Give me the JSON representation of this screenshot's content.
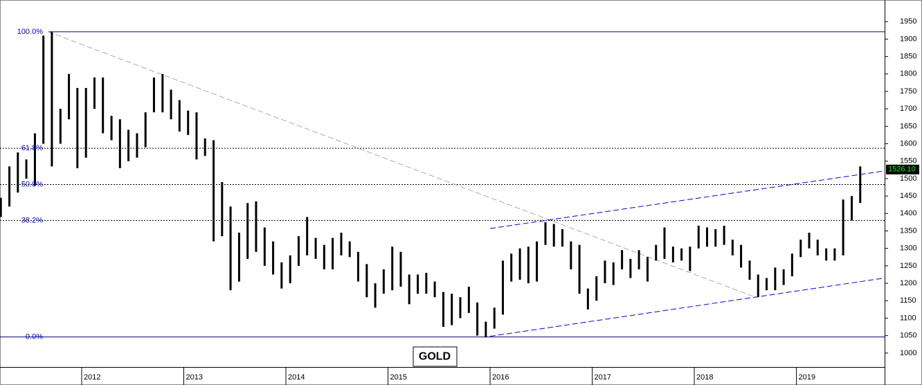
{
  "chart_data": {
    "type": "hilo",
    "title": "GOLD",
    "color": "#000000",
    "xlim": [
      2011.2,
      2019.864
    ],
    "xticks": [
      2012,
      2013,
      2014,
      2015,
      2016,
      2017,
      2018,
      2019
    ],
    "ylim": [
      960,
      2012
    ],
    "yticks": [
      1000,
      1050,
      1100,
      1150,
      1200,
      1250,
      1300,
      1350,
      1400,
      1450,
      1500,
      1550,
      1600,
      1650,
      1700,
      1750,
      1800,
      1850,
      1900,
      1950
    ],
    "x": [
      2011.208,
      2011.292,
      2011.375,
      2011.458,
      2011.542,
      2011.625,
      2011.708,
      2011.792,
      2011.875,
      2011.958,
      2012.042,
      2012.125,
      2012.208,
      2012.292,
      2012.375,
      2012.458,
      2012.542,
      2012.625,
      2012.708,
      2012.792,
      2012.875,
      2012.958,
      2013.042,
      2013.125,
      2013.208,
      2013.292,
      2013.375,
      2013.458,
      2013.542,
      2013.625,
      2013.708,
      2013.792,
      2013.875,
      2013.958,
      2014.042,
      2014.125,
      2014.208,
      2014.292,
      2014.375,
      2014.458,
      2014.542,
      2014.625,
      2014.708,
      2014.792,
      2014.875,
      2014.958,
      2015.042,
      2015.125,
      2015.208,
      2015.292,
      2015.375,
      2015.458,
      2015.542,
      2015.625,
      2015.708,
      2015.792,
      2015.875,
      2015.958,
      2016.042,
      2016.125,
      2016.208,
      2016.292,
      2016.375,
      2016.458,
      2016.542,
      2016.625,
      2016.708,
      2016.792,
      2016.875,
      2016.958,
      2017.042,
      2017.125,
      2017.208,
      2017.292,
      2017.375,
      2017.458,
      2017.542,
      2017.625,
      2017.708,
      2017.792,
      2017.875,
      2017.958,
      2018.042,
      2018.125,
      2018.208,
      2018.292,
      2018.375,
      2018.458,
      2018.542,
      2018.625,
      2018.708,
      2018.792,
      2018.875,
      2018.958,
      2019.042,
      2019.125,
      2019.208,
      2019.292,
      2019.375,
      2019.458,
      2019.542,
      2019.625
    ],
    "high": [
      1445,
      1535,
      1575,
      1555,
      1630,
      1910,
      1920,
      1700,
      1800,
      1760,
      1760,
      1790,
      1790,
      1680,
      1670,
      1640,
      1630,
      1690,
      1790,
      1800,
      1755,
      1725,
      1695,
      1690,
      1615,
      1610,
      1490,
      1420,
      1345,
      1430,
      1435,
      1360,
      1320,
      1260,
      1280,
      1335,
      1390,
      1330,
      1310,
      1330,
      1345,
      1320,
      1290,
      1255,
      1200,
      1240,
      1305,
      1290,
      1225,
      1225,
      1230,
      1205,
      1175,
      1170,
      1160,
      1190,
      1145,
      1090,
      1130,
      1265,
      1285,
      1300,
      1305,
      1320,
      1375,
      1370,
      1355,
      1320,
      1310,
      1185,
      1220,
      1265,
      1260,
      1295,
      1270,
      1295,
      1275,
      1310,
      1360,
      1305,
      1300,
      1305,
      1365,
      1360,
      1355,
      1365,
      1325,
      1310,
      1265,
      1225,
      1215,
      1245,
      1240,
      1285,
      1325,
      1345,
      1325,
      1300,
      1300,
      1440,
      1450,
      1535
    ],
    "low": [
      1390,
      1420,
      1460,
      1500,
      1480,
      1600,
      1535,
      1600,
      1670,
      1530,
      1560,
      1700,
      1630,
      1610,
      1530,
      1550,
      1560,
      1590,
      1690,
      1690,
      1670,
      1635,
      1625,
      1555,
      1565,
      1320,
      1335,
      1180,
      1205,
      1270,
      1290,
      1250,
      1225,
      1185,
      1200,
      1250,
      1280,
      1270,
      1240,
      1240,
      1280,
      1275,
      1205,
      1160,
      1130,
      1170,
      1180,
      1190,
      1140,
      1170,
      1170,
      1160,
      1075,
      1080,
      1100,
      1115,
      1050,
      1045,
      1070,
      1110,
      1205,
      1210,
      1200,
      1205,
      1310,
      1305,
      1305,
      1240,
      1170,
      1125,
      1150,
      1200,
      1195,
      1240,
      1215,
      1240,
      1205,
      1265,
      1270,
      1260,
      1265,
      1235,
      1300,
      1305,
      1305,
      1310,
      1280,
      1245,
      1210,
      1160,
      1180,
      1180,
      1195,
      1220,
      1275,
      1300,
      1280,
      1265,
      1265,
      1280,
      1380,
      1430
    ],
    "fib_levels": [
      {
        "value": 1921,
        "label": "100.0%"
      },
      {
        "value": 1587,
        "label": "61.8%"
      },
      {
        "value": 1483,
        "label": "50.0%"
      },
      {
        "value": 1380,
        "label": "38.2%"
      },
      {
        "value": 1046,
        "label": "0.0%"
      }
    ],
    "trend_lines": [
      {
        "color": "#aaaaaa",
        "x": [
          2011.67,
          2018.6
        ],
        "y": [
          1921,
          1160
        ]
      },
      {
        "color": "#0000dd",
        "x": [
          2016.0,
          2019.864
        ],
        "y": [
          1357,
          1522
        ]
      },
      {
        "color": "#0000dd",
        "x": [
          2016.0,
          2019.864
        ],
        "y": [
          1048,
          1215
        ]
      }
    ],
    "last_price": {
      "value": 1526.1,
      "label": "1526.10"
    }
  }
}
